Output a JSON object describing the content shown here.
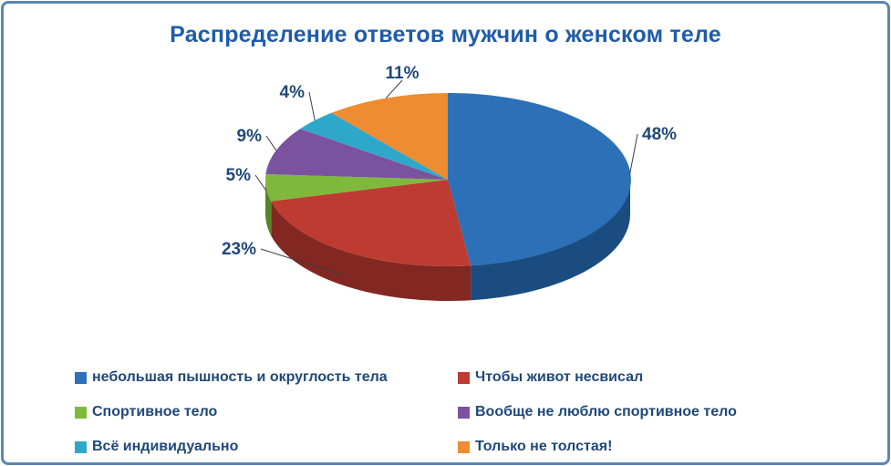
{
  "frame": {
    "border_color": "#5B87B4",
    "background": "#FFFFFF"
  },
  "chart_data": {
    "type": "pie",
    "style": "pie3d",
    "title": "Распределение ответов мужчин о женском теле",
    "title_color": "#1F5CA8",
    "label_color": "#1F4879",
    "legend_position": "bottom",
    "legend_columns": 2,
    "start_angle_deg": 0,
    "direction": "clockwise",
    "slices": [
      {
        "label": "небольшая пышность и округлость тела",
        "value": 48,
        "percent_label": "48%",
        "color": "#2C70B8",
        "side_color": "#1B4C80"
      },
      {
        "label": "Чтобы живот несвисал",
        "value": 23,
        "percent_label": "23%",
        "color": "#BE3B31",
        "side_color": "#832722"
      },
      {
        "label": "Спортивное тело",
        "value": 5,
        "percent_label": "5%",
        "color": "#7FB93C",
        "side_color": "#57832A"
      },
      {
        "label": "Вообще не люблю спортивное тело",
        "value": 9,
        "percent_label": "9%",
        "color": "#7B52A0",
        "side_color": "#553870"
      },
      {
        "label": "Всё индивидуально",
        "value": 4,
        "percent_label": "4%",
        "color": "#2FA7C9",
        "side_color": "#1F7690"
      },
      {
        "label": "Только не толстая!",
        "value": 11,
        "percent_label": "11%",
        "color": "#EF8B30",
        "side_color": "#AD6220"
      }
    ]
  }
}
